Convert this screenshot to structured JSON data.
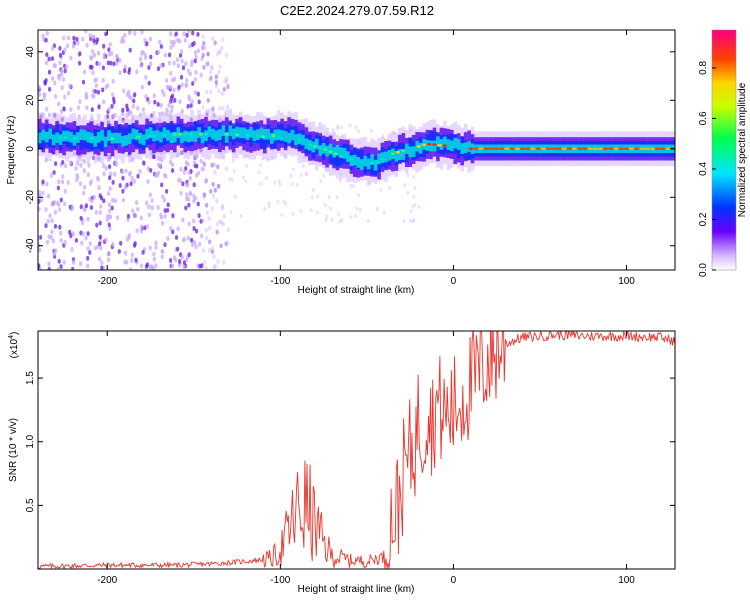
{
  "title": "C2E2.2024.279.07.59.R12",
  "colors": {
    "snr_line": "#e8352d",
    "frame": "#000000"
  },
  "chart_data": [
    {
      "type": "heatmap",
      "xlabel": "Height of straight line (km)",
      "ylabel": "Frequency (Hz)",
      "xlim": [
        -240,
        128
      ],
      "ylim": [
        -50,
        49
      ],
      "xticks": [
        -200,
        -100,
        0,
        100
      ],
      "yticks": [
        -40,
        -20,
        0,
        20,
        40
      ],
      "colorbar": {
        "label": "Normalized spectral amplitude",
        "range": [
          0.0,
          0.95
        ],
        "ticks": [
          "0.0",
          "0.2",
          "0.4",
          "0.6",
          "0.8"
        ],
        "colormap": "rainbow"
      },
      "center_frequency_trace": {
        "x": [
          -240,
          -200,
          -160,
          -130,
          -110,
          -95,
          -85,
          -75,
          -65,
          -55,
          -45,
          -35,
          -25,
          -15,
          0,
          10,
          128
        ],
        "y": [
          5,
          4,
          6,
          6,
          5,
          6,
          2,
          0,
          -3,
          -5,
          -6,
          -2,
          0,
          2,
          1,
          0,
          0
        ]
      },
      "grid": false
    },
    {
      "type": "line",
      "xlabel": "Height of straight line (km)",
      "ylabel": "SNR (10 * v/v)",
      "yscale_label": "(x10",
      "yscale_exp": "4",
      "xlim": [
        -240,
        128
      ],
      "ylim": [
        0,
        1.87
      ],
      "xticks": [
        -200,
        -100,
        0,
        100
      ],
      "yticks": [
        0.5,
        1.0,
        1.5
      ],
      "ytick_labels": [
        "0.5",
        "1.0",
        "1.5"
      ],
      "series": [
        {
          "x": [
            -240,
            -200,
            -160,
            -140,
            -120,
            -105,
            -100,
            -95,
            -90,
            -85,
            -80,
            -75,
            -70,
            -60,
            -50,
            -40,
            -38,
            -35,
            -32,
            -30,
            -28,
            -25,
            -22,
            -20,
            -18,
            -15,
            -12,
            -10,
            -5,
            0,
            5,
            10,
            15,
            20,
            25,
            30,
            40,
            50,
            60,
            80,
            100,
            120,
            128
          ],
          "y": [
            0.02,
            0.03,
            0.03,
            0.04,
            0.06,
            0.08,
            0.15,
            0.3,
            0.45,
            0.5,
            0.35,
            0.2,
            0.1,
            0.07,
            0.06,
            0.1,
            0.3,
            0.4,
            0.5,
            0.65,
            0.8,
            0.9,
            1.0,
            1.2,
            1.05,
            1.3,
            1.15,
            1.3,
            1.2,
            1.25,
            1.35,
            1.45,
            1.55,
            1.65,
            1.72,
            1.77,
            1.82,
            1.83,
            1.84,
            1.83,
            1.83,
            1.82,
            1.79
          ]
        }
      ]
    }
  ]
}
